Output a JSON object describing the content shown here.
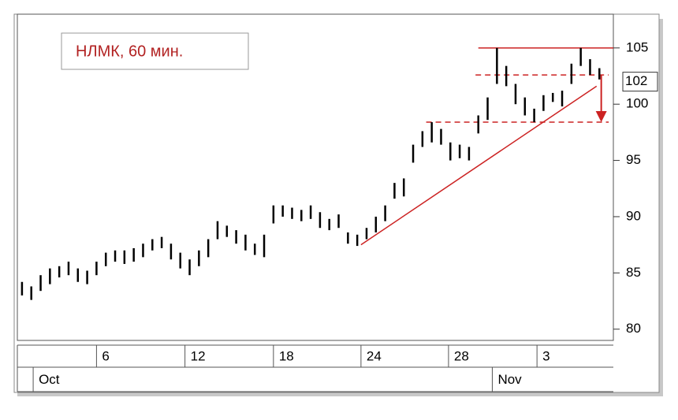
{
  "chart_data": {
    "type": "hilo",
    "title": "НЛМК, 60 мин.",
    "x": [
      0,
      1,
      2,
      3,
      4,
      5,
      6,
      7,
      8,
      9,
      10,
      11,
      12,
      13,
      14,
      15,
      16,
      17,
      18,
      19,
      20,
      21,
      22,
      23,
      24,
      25,
      26,
      27,
      28,
      29,
      30,
      31,
      32,
      33,
      34,
      35,
      36,
      37,
      38,
      39,
      40,
      41,
      42,
      43,
      44,
      45,
      46,
      47,
      48,
      49,
      50,
      51,
      52,
      53,
      54,
      55,
      56,
      57,
      58,
      59,
      60,
      61,
      62
    ],
    "high": [
      84.2,
      83.8,
      84.8,
      85.4,
      85.6,
      86.0,
      85.4,
      85.2,
      86.0,
      86.8,
      87.0,
      87.0,
      87.2,
      87.6,
      88.0,
      88.2,
      87.6,
      86.8,
      86.2,
      87.0,
      88.0,
      89.6,
      89.2,
      88.8,
      88.4,
      87.6,
      88.4,
      91.0,
      91.0,
      90.8,
      90.6,
      91.0,
      90.4,
      89.8,
      90.2,
      88.6,
      88.4,
      89.0,
      90.0,
      91.0,
      93.0,
      93.4,
      96.4,
      97.6,
      98.4,
      97.8,
      96.6,
      96.4,
      96.2,
      99.0,
      100.6,
      105.0,
      103.4,
      101.8,
      100.6,
      99.6,
      100.8,
      101.0,
      101.2,
      103.6,
      105.0,
      104.0,
      103.2
    ],
    "low": [
      83.0,
      82.6,
      83.4,
      84.0,
      84.6,
      84.8,
      84.2,
      84.0,
      84.8,
      85.6,
      86.0,
      85.8,
      86.0,
      86.4,
      87.0,
      87.2,
      86.2,
      85.4,
      84.8,
      85.6,
      86.4,
      88.0,
      88.2,
      87.6,
      87.0,
      86.6,
      86.4,
      89.4,
      90.0,
      89.8,
      89.6,
      89.8,
      89.0,
      88.8,
      89.0,
      87.6,
      87.4,
      88.0,
      88.6,
      89.6,
      91.6,
      91.8,
      94.8,
      96.2,
      96.6,
      96.4,
      95.0,
      95.2,
      95.0,
      97.4,
      98.6,
      101.8,
      101.6,
      100.0,
      99.0,
      98.4,
      99.4,
      100.2,
      99.8,
      101.8,
      103.4,
      102.6,
      102.2
    ],
    "color": "#000000",
    "xlim": [
      -0.5,
      63.5
    ],
    "ylim": [
      79,
      108
    ],
    "yticks": [
      80,
      85,
      90,
      95,
      100,
      105
    ],
    "xticks": [
      {
        "value": 8,
        "label": "6"
      },
      {
        "value": 17.5,
        "label": "12"
      },
      {
        "value": 27,
        "label": "18"
      },
      {
        "value": 36.4,
        "label": "24"
      },
      {
        "value": 45.8,
        "label": "28"
      },
      {
        "value": 55.3,
        "label": "3"
      }
    ],
    "xticks2": [
      {
        "value": 1.2,
        "label": "Oct"
      },
      {
        "value": 50.5,
        "label": "Nov"
      }
    ],
    "last_price": 102,
    "annotation_color": "#cc2222",
    "levels": [
      {
        "y": 105,
        "x": [
          49.0,
          63.5
        ],
        "style": "solid"
      },
      {
        "y": 102.6,
        "x": [
          48.7,
          63.0
        ],
        "style": "dashed"
      },
      {
        "y": 98.4,
        "x": [
          43.4,
          63.0
        ],
        "style": "dashed"
      }
    ],
    "trend": {
      "x": [
        36.4,
        61.7
      ],
      "y": [
        87.5,
        101.6
      ]
    },
    "arrow": {
      "x": 62.2,
      "y": [
        102.6,
        98.4
      ]
    }
  }
}
